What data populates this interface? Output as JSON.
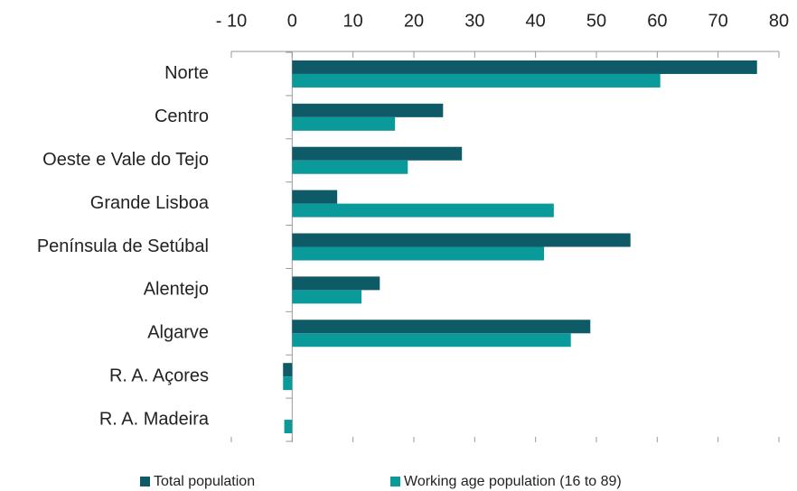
{
  "chart_data": {
    "type": "hbar",
    "categories": [
      "Norte",
      "Centro",
      "Oeste e Vale do Tejo",
      "Grande Lisboa",
      "Península de Setúbal",
      "Alentejo",
      "Algarve",
      "R. A. Açores",
      "R. A. Madeira"
    ],
    "series": [
      {
        "name": "Total population",
        "color": "#0e5a66",
        "values": [
          76.4,
          24.8,
          27.9,
          7.4,
          55.6,
          14.4,
          49.0,
          -1.5,
          0
        ]
      },
      {
        "name": "Working age population (16 to 89)",
        "color": "#0a9a9a",
        "values": [
          60.5,
          16.9,
          19.0,
          43.0,
          41.4,
          11.4,
          45.8,
          -1.5,
          -1.3
        ]
      }
    ],
    "xlim": [
      -10,
      80
    ],
    "xticks": [
      {
        "value": -10,
        "label": "- 10"
      },
      0,
      10,
      20,
      30,
      40,
      50,
      60,
      70,
      80
    ],
    "legend": "bottom"
  }
}
